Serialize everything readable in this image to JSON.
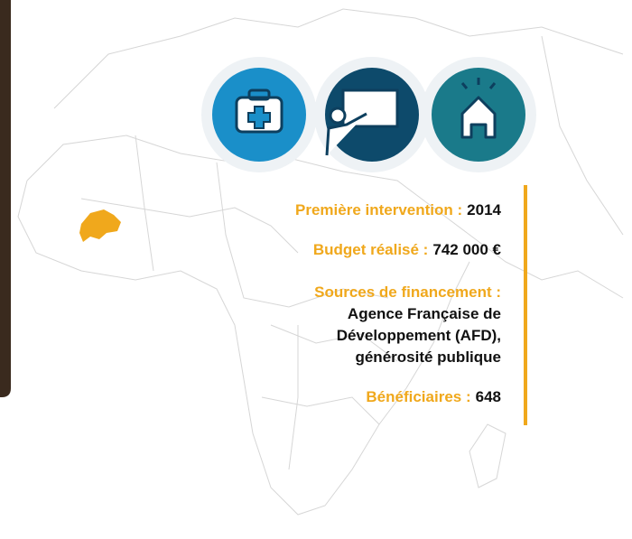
{
  "items": [
    {
      "label": "Première intervention :",
      "value": "2014"
    },
    {
      "label": "Budget réalisé :",
      "value": "742 000 €"
    },
    {
      "label": "Bénéficiaires :",
      "value": "648"
    }
  ],
  "sources": {
    "label": "Sources de financement :",
    "lines": [
      "Agence Française de",
      "Développement (AFD),",
      "générosité publique"
    ]
  }
}
